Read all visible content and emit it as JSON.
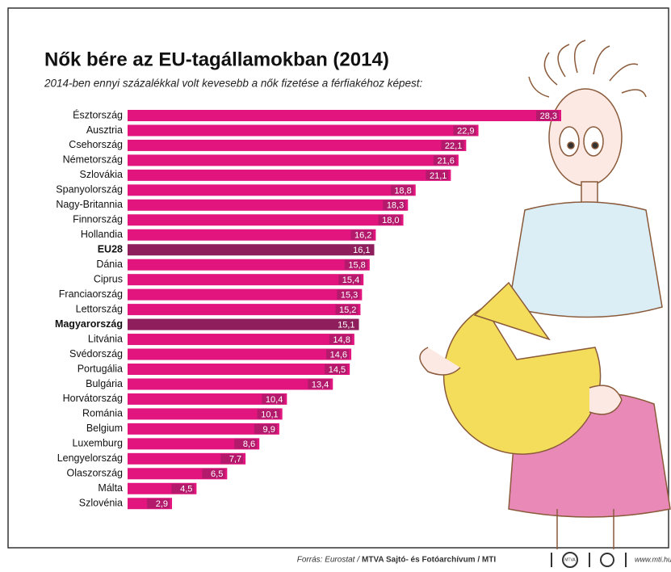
{
  "chart_data": {
    "type": "bar",
    "orientation": "horizontal",
    "title": "Nők bére az EU-tagállamokban (2014)",
    "subtitle": "2014-ben ennyi százalékkal volt kevesebb a nők fizetése a férfiakéhoz képest:",
    "categories": [
      "Észtország",
      "Ausztria",
      "Csehország",
      "Németország",
      "Szlovákia",
      "Spanyolország",
      "Nagy-Britannia",
      "Finnország",
      "Hollandia",
      "EU28",
      "Dánia",
      "Ciprus",
      "Franciaország",
      "Lettország",
      "Magyarország",
      "Litvánia",
      "Svédország",
      "Portugália",
      "Bulgária",
      "Horvátország",
      "Románia",
      "Belgium",
      "Luxemburg",
      "Lengyelország",
      "Olaszország",
      "Málta",
      "Szlovénia"
    ],
    "values": [
      28.3,
      22.9,
      22.1,
      21.6,
      21.1,
      18.8,
      18.3,
      18.0,
      16.2,
      16.1,
      15.8,
      15.4,
      15.3,
      15.2,
      15.1,
      14.8,
      14.6,
      14.5,
      13.4,
      10.4,
      10.1,
      9.9,
      8.6,
      7.7,
      6.5,
      4.5,
      2.9
    ],
    "value_labels": [
      "28,3",
      "22,9",
      "22,1",
      "21,6",
      "21,1",
      "18,8",
      "18,3",
      "18,0",
      "16,2",
      "16,1",
      "15,8",
      "15,4",
      "15,3",
      "15,2",
      "15,1",
      "14,8",
      "14,6",
      "14,5",
      "13,4",
      "10,4",
      "10,1",
      "9,9",
      "8,6",
      "7,7",
      "6,5",
      "4,5",
      "2,9"
    ],
    "color": "#e2157f",
    "colors": [
      "#e2157f",
      "#e2157f",
      "#e2157f",
      "#e2157f",
      "#e2157f",
      "#e2157f",
      "#e2157f",
      "#e2157f",
      "#e2157f",
      "#8e1f5c",
      "#e2157f",
      "#e2157f",
      "#e2157f",
      "#e2157f",
      "#8e1f5c",
      "#e2157f",
      "#e2157f",
      "#e2157f",
      "#e2157f",
      "#e2157f",
      "#e2157f",
      "#e2157f",
      "#e2157f",
      "#e2157f",
      "#e2157f",
      "#e2157f",
      "#e2157f"
    ],
    "source_prefix": "Forrás: Eurostat /",
    "source_bold": "MTVA Sajtó- és Fotóarchívum / MTI",
    "logo_text": "MTVA",
    "website": "www.mti.hu"
  }
}
